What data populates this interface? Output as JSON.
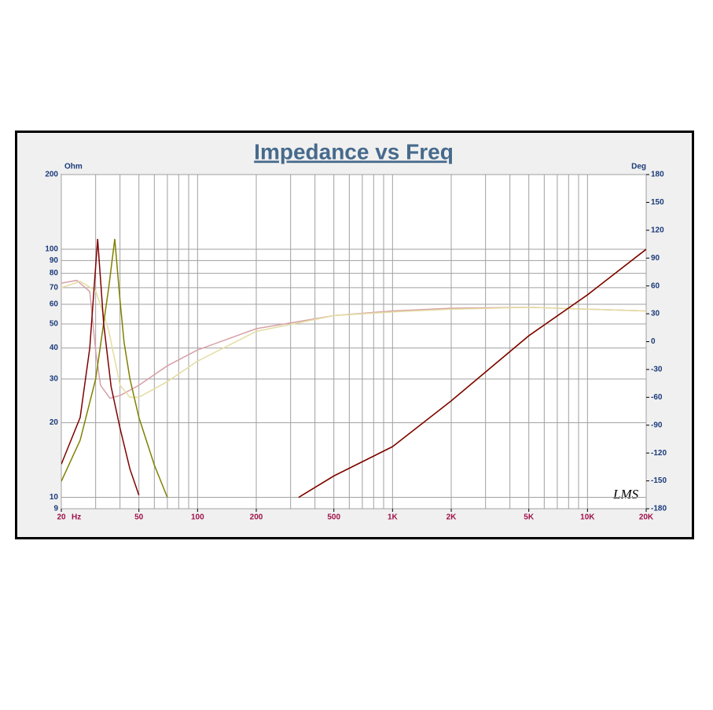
{
  "chart_data": {
    "type": "line",
    "title": "Impedance vs Freq",
    "xlabel": "Hz",
    "ylabel": "Ohm",
    "y2label": "Deg",
    "watermark": "LMS",
    "xscale": "log",
    "yscale": "log",
    "xlim": [
      20,
      20000
    ],
    "ylim": [
      9,
      200
    ],
    "y2lim": [
      -180,
      180
    ],
    "xticks": [
      20,
      50,
      100,
      200,
      500,
      {
        "value": 1000,
        "label": "1K"
      },
      {
        "value": 2000,
        "label": "2K"
      },
      {
        "value": 5000,
        "label": "5K"
      },
      {
        "value": 10000,
        "label": "10K"
      },
      {
        "value": 20000,
        "label": "20K"
      }
    ],
    "xgrid": [
      20,
      30,
      40,
      50,
      60,
      70,
      80,
      90,
      100,
      200,
      300,
      400,
      500,
      600,
      700,
      800,
      900,
      1000,
      2000,
      3000,
      4000,
      5000,
      6000,
      7000,
      8000,
      9000,
      10000,
      20000
    ],
    "yticks": [
      9,
      10,
      20,
      30,
      40,
      50,
      60,
      70,
      80,
      90,
      100,
      200
    ],
    "y2ticks": [
      -180,
      -150,
      -120,
      -90,
      -60,
      -30,
      0,
      30,
      60,
      90,
      120,
      150,
      180
    ],
    "grid": true,
    "series": [
      {
        "color": "#800000",
        "x": [
          20,
          25,
          28,
          30.7,
          33,
          36,
          40,
          45,
          50,
          100,
          330,
          500,
          1000,
          2000,
          5000,
          10000,
          20000
        ],
        "values": [
          13.6,
          21,
          40,
          110,
          50,
          28,
          19,
          13,
          10.2,
          null,
          10,
          12.2,
          16,
          24.5,
          44.8,
          65.5,
          100
        ]
      },
      {
        "color": "#808000",
        "x": [
          20,
          25,
          30,
          35,
          37.6,
          40,
          42,
          45,
          50,
          60,
          70,
          100,
          330,
          500,
          1000,
          2000,
          5000,
          10000,
          20000
        ],
        "values": [
          11.6,
          17,
          30,
          70,
          110,
          62,
          42,
          30,
          21,
          13.5,
          10,
          null,
          10,
          12.2,
          16,
          24.5,
          44.8,
          65.5,
          100
        ]
      },
      {
        "color": "#d8a0a8",
        "axis": "y2",
        "x": [
          20,
          24,
          28,
          30,
          31.8,
          35.5,
          40,
          50,
          70,
          100,
          200,
          500,
          1000,
          2000,
          5000,
          10000,
          20000
        ],
        "values": [
          63,
          66,
          54,
          -10,
          -47,
          -61,
          -58,
          -47,
          -26,
          -9,
          14,
          28,
          33,
          36,
          37,
          35,
          33
        ]
      },
      {
        "color": "#e4dca0",
        "axis": "y2",
        "x": [
          20,
          25,
          30,
          35,
          40,
          45,
          50,
          70,
          100,
          200,
          500,
          1000,
          2000,
          5000,
          10000,
          20000
        ],
        "values": [
          58,
          65,
          55,
          12,
          -47,
          -60,
          -60,
          -43,
          -21,
          11,
          28,
          32,
          35,
          37,
          35,
          33
        ]
      }
    ]
  }
}
